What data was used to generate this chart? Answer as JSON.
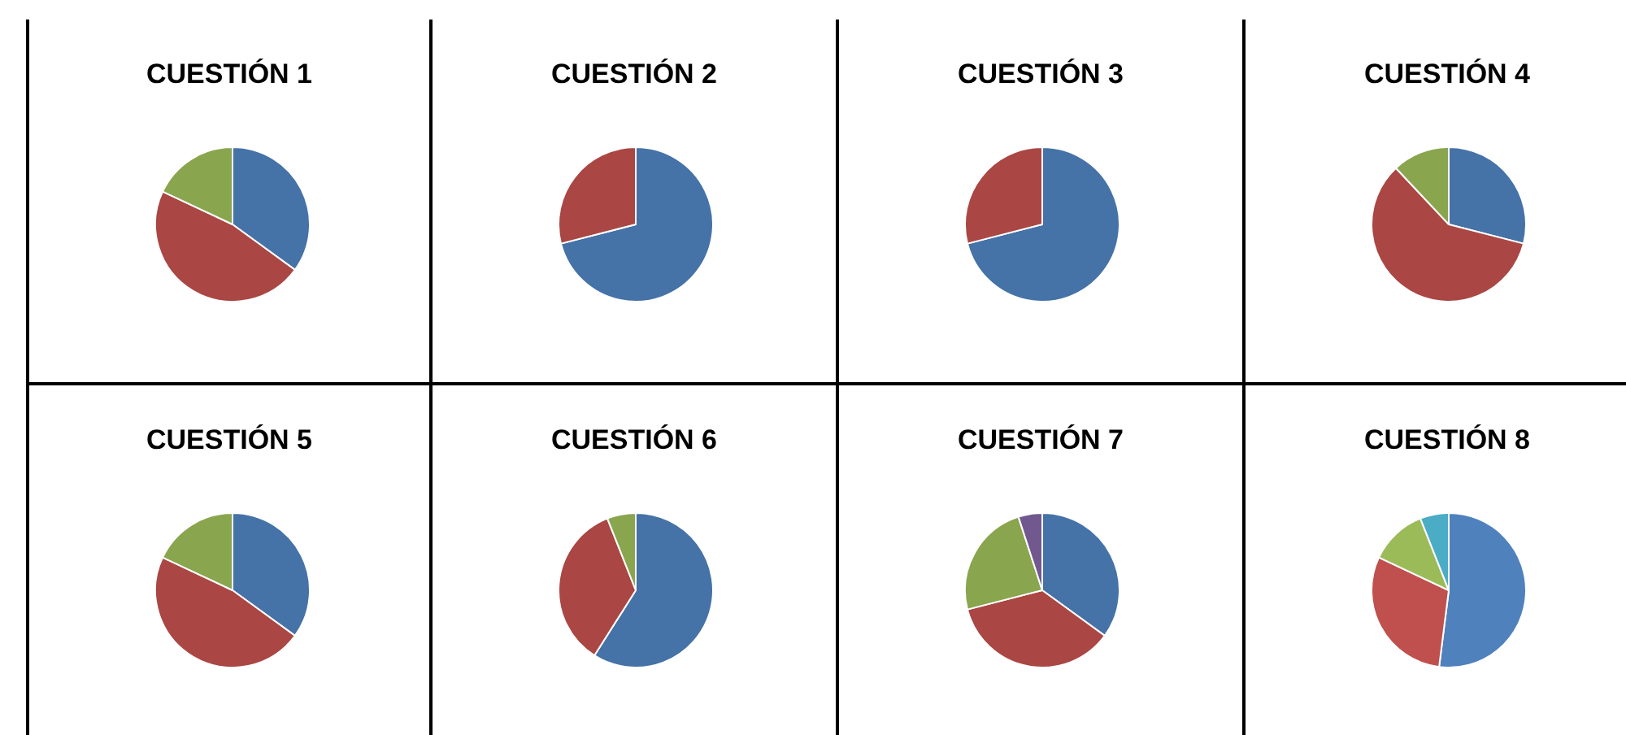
{
  "chart_data": [
    {
      "type": "pie",
      "title": "CUESTIÓN 1",
      "categories": [
        null,
        null,
        null
      ],
      "values": [
        35,
        47,
        18
      ],
      "colors": [
        "#4572a7",
        "#aa4643",
        "#89a54e"
      ]
    },
    {
      "type": "pie",
      "title": "CUESTIÓN 2",
      "categories": [
        null,
        null
      ],
      "values": [
        71,
        29
      ],
      "colors": [
        "#4572a7",
        "#aa4643"
      ]
    },
    {
      "type": "pie",
      "title": "CUESTIÓN 3",
      "categories": [
        null,
        null
      ],
      "values": [
        71,
        29
      ],
      "colors": [
        "#4572a7",
        "#aa4643"
      ]
    },
    {
      "type": "pie",
      "title": "CUESTIÓN 4",
      "categories": [
        null,
        null,
        null
      ],
      "values": [
        29,
        59,
        12
      ],
      "colors": [
        "#4572a7",
        "#aa4643",
        "#89a54e"
      ]
    },
    {
      "type": "pie",
      "title": "CUESTIÓN 5",
      "categories": [
        null,
        null,
        null
      ],
      "values": [
        35,
        47,
        18
      ],
      "colors": [
        "#4572a7",
        "#aa4643",
        "#89a54e"
      ]
    },
    {
      "type": "pie",
      "title": "CUESTIÓN 6",
      "categories": [
        null,
        null,
        null
      ],
      "values": [
        59,
        35,
        6
      ],
      "colors": [
        "#4572a7",
        "#aa4643",
        "#89a54e"
      ]
    },
    {
      "type": "pie",
      "title": "CUESTIÓN 7",
      "categories": [
        null,
        null,
        null,
        null
      ],
      "values": [
        35,
        36,
        24,
        5
      ],
      "colors": [
        "#4572a7",
        "#aa4643",
        "#89a54e",
        "#71588f"
      ]
    },
    {
      "type": "pie",
      "title": "CUESTIÓN 8",
      "categories": [
        null,
        null,
        null,
        null
      ],
      "values": [
        52,
        30,
        12,
        6
      ],
      "colors": [
        "#4f81bd",
        "#c0504d",
        "#9bbb59",
        "#4bacc6"
      ]
    }
  ]
}
